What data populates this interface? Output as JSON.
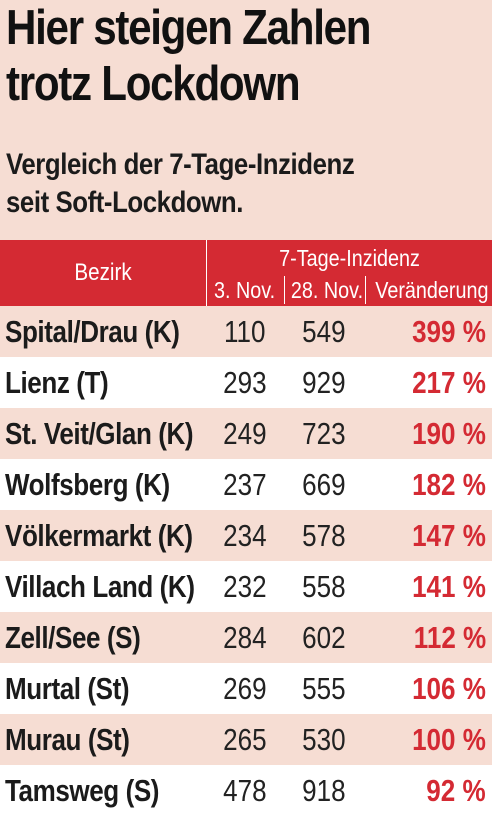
{
  "title_lines": [
    "Hier steigen Zahlen",
    "trotz Lockdown"
  ],
  "subtitle_lines": [
    "Vergleich der 7-Tage-Inzidenz",
    "seit Soft-Lockdown."
  ],
  "colors": {
    "background": "#f6ddd3",
    "header": "#d42a33",
    "accent": "#d42a33",
    "row_alt": "#ffffff"
  },
  "chart_data": {
    "type": "table",
    "columns": {
      "bezirk": "Bezirk",
      "group": "7-Tage-Inzidenz",
      "col1": "3. Nov.",
      "col2": "28. Nov.",
      "col3": "Veränderung"
    },
    "rows": [
      {
        "bezirk": "Spital/Drau (K)",
        "nov3": 110,
        "nov28": 549,
        "change": "399 %"
      },
      {
        "bezirk": "Lienz (T)",
        "nov3": 293,
        "nov28": 929,
        "change": "217 %"
      },
      {
        "bezirk": "St. Veit/Glan (K)",
        "nov3": 249,
        "nov28": 723,
        "change": "190 %"
      },
      {
        "bezirk": "Wolfsberg (K)",
        "nov3": 237,
        "nov28": 669,
        "change": "182 %"
      },
      {
        "bezirk": "Völkermarkt (K)",
        "nov3": 234,
        "nov28": 578,
        "change": "147 %"
      },
      {
        "bezirk": "Villach Land (K)",
        "nov3": 232,
        "nov28": 558,
        "change": "141 %"
      },
      {
        "bezirk": "Zell/See (S)",
        "nov3": 284,
        "nov28": 602,
        "change": "112 %"
      },
      {
        "bezirk": "Murtal (St)",
        "nov3": 269,
        "nov28": 555,
        "change": "106 %"
      },
      {
        "bezirk": "Murau (St)",
        "nov3": 265,
        "nov28": 530,
        "change": "100 %"
      },
      {
        "bezirk": "Tamsweg (S)",
        "nov3": 478,
        "nov28": 918,
        "change": "92 %"
      }
    ]
  }
}
